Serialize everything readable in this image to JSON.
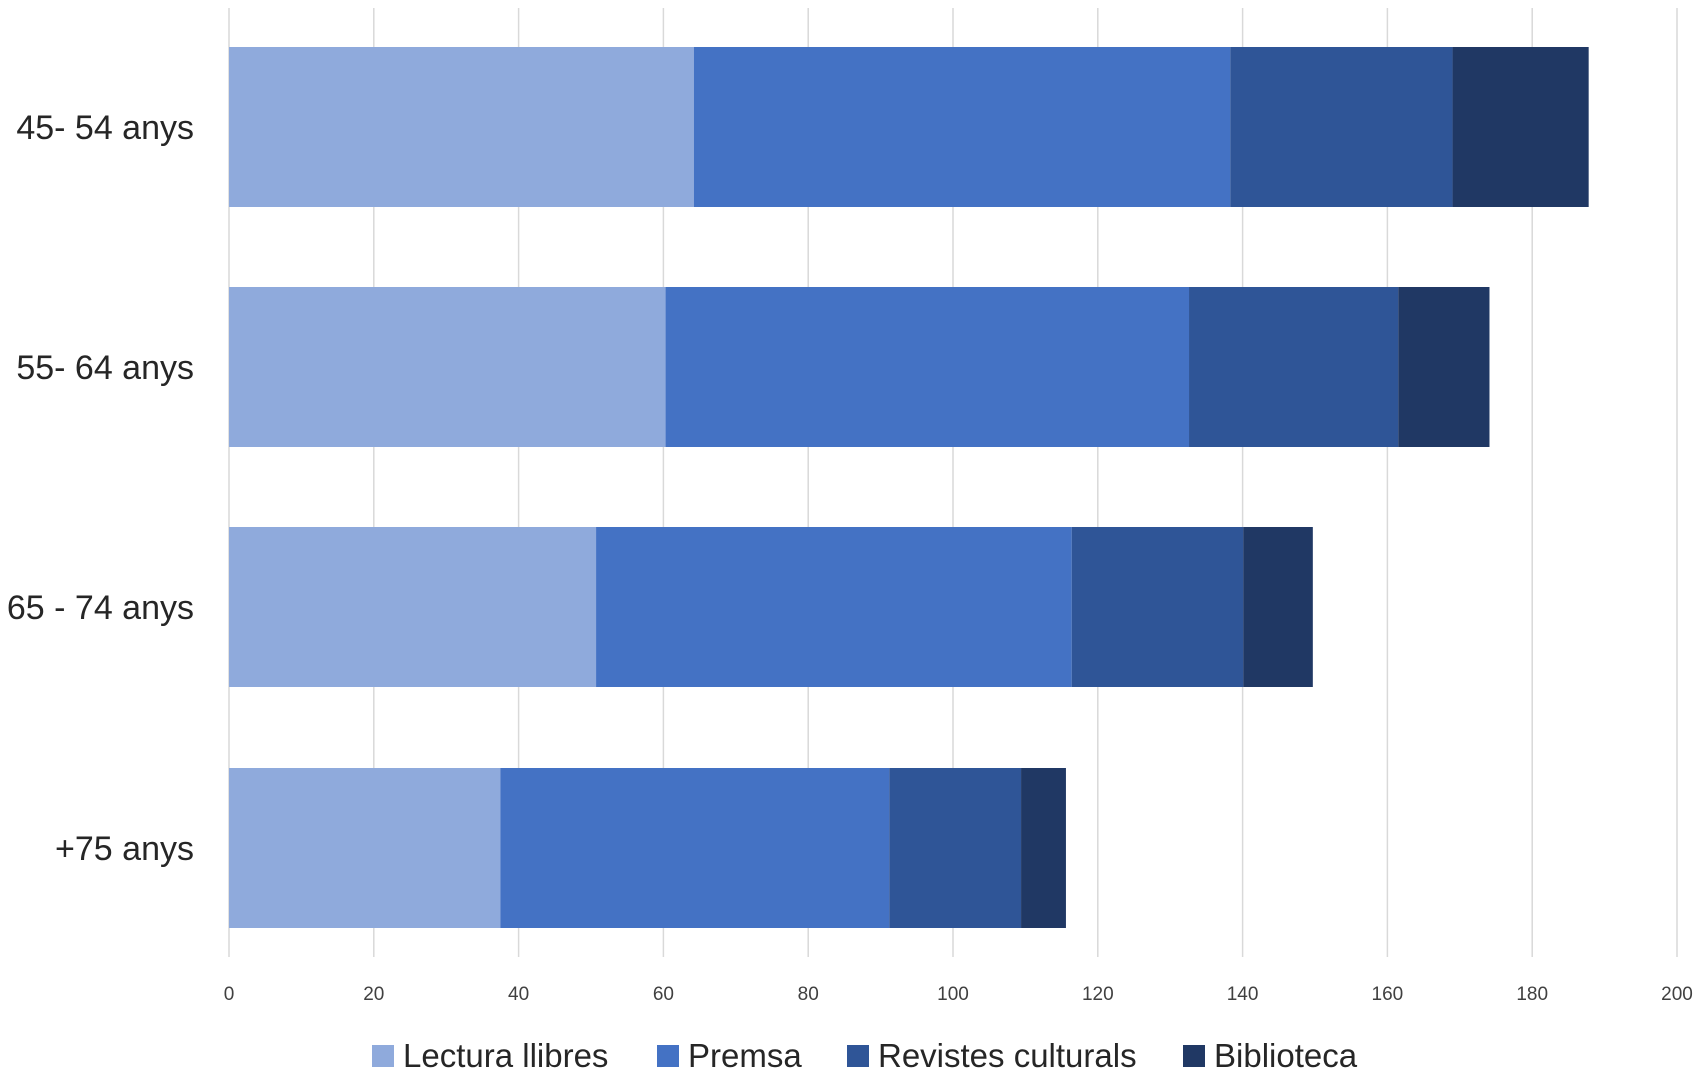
{
  "chart_data": {
    "type": "bar",
    "orientation": "horizontal",
    "stacked": true,
    "categories": [
      "45- 54 anys",
      "55- 64 anys",
      "65 - 74 anys",
      "+75 anys"
    ],
    "series": [
      {
        "name": "Lectura llibres",
        "color": "#8FAADC",
        "values": [
          64.2,
          60.3,
          50.7,
          37.5
        ]
      },
      {
        "name": "Premsa",
        "color": "#4472C4",
        "values": [
          74.1,
          72.3,
          65.7,
          53.7
        ]
      },
      {
        "name": "Revistes culturals",
        "color": "#2F5597",
        "values": [
          30.7,
          28.9,
          23.7,
          18.2
        ]
      },
      {
        "name": "Biblioteca",
        "color": "#203864",
        "values": [
          18.8,
          12.6,
          9.6,
          6.2
        ]
      }
    ],
    "xlim": [
      0,
      200
    ],
    "xticks": [
      "0",
      "20",
      "40",
      "60",
      "80",
      "100",
      "120",
      "140",
      "160",
      "180",
      "200"
    ],
    "grid": true,
    "legend_position": "bottom"
  }
}
